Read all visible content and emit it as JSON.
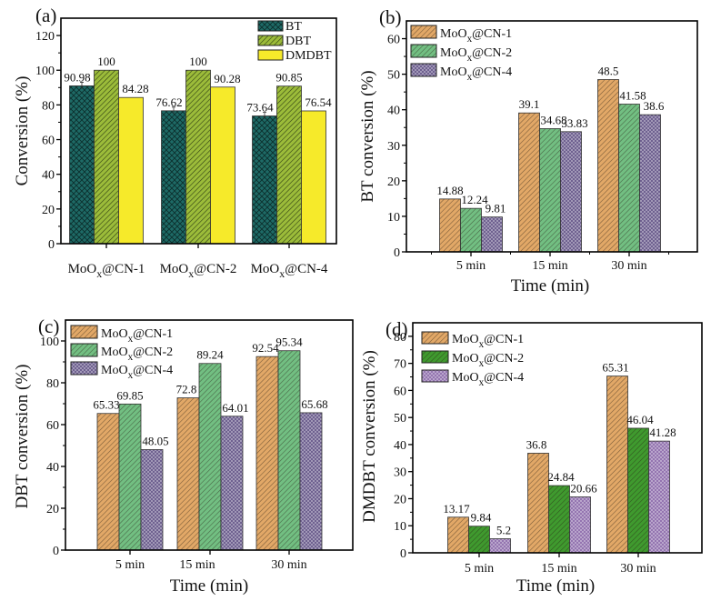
{
  "figure": {
    "panels_count": 4
  },
  "chart_data": [
    {
      "panel": "(a)",
      "type": "bar",
      "title": "",
      "xlabel": "",
      "ylabel": "Conversion (%)",
      "ylim": [
        0,
        130
      ],
      "yticks": [
        0,
        20,
        40,
        60,
        80,
        100,
        120
      ],
      "categories": [
        "MoOx@CN-1",
        "MoOx@CN-2",
        "MoOx@CN-4"
      ],
      "category_parts": [
        {
          "base": "MoO",
          "sub": "x",
          "rest": "@CN-1"
        },
        {
          "base": "MoO",
          "sub": "x",
          "rest": "@CN-2"
        },
        {
          "base": "MoO",
          "sub": "x",
          "rest": "@CN-4"
        }
      ],
      "series": [
        {
          "name": "BT",
          "values": [
            90.98,
            76.62,
            73.64
          ],
          "labels": [
            "90.98",
            "76.62",
            "73.64"
          ],
          "color": "#1e6a66",
          "pattern": "crosshatch",
          "error_bars": true
        },
        {
          "name": "DBT",
          "values": [
            100,
            100,
            90.85
          ],
          "labels": [
            "100",
            "100",
            "90.85"
          ],
          "color": "#9cbc3a",
          "pattern": "stripe-dark"
        },
        {
          "name": "DMDBT",
          "values": [
            84.28,
            90.28,
            76.54
          ],
          "labels": [
            "84.28",
            "90.28",
            "76.54"
          ],
          "color": "#f6ea2a",
          "pattern": "solid"
        }
      ],
      "legend": {
        "placement": "top-right",
        "items": [
          {
            "label": "BT"
          },
          {
            "label": "DBT"
          },
          {
            "label": "DMDBT"
          }
        ]
      },
      "grid": false
    },
    {
      "panel": "(b)",
      "type": "bar",
      "title": "",
      "xlabel": "Time (min)",
      "ylabel": "BT conversion (%)",
      "ylim": [
        0,
        65
      ],
      "yticks": [
        0,
        10,
        20,
        30,
        40,
        50,
        60
      ],
      "categories": [
        "5 min",
        "15 min",
        "30 min"
      ],
      "series": [
        {
          "name": "MoOx@CN-1",
          "values": [
            14.88,
            39.1,
            48.5
          ],
          "labels": [
            "14.88",
            "39.1",
            "48.5"
          ],
          "color": "#e2a867",
          "pattern": "stripe"
        },
        {
          "name": "MoOx@CN-2",
          "values": [
            12.24,
            34.68,
            41.58
          ],
          "labels": [
            "12.24",
            "34.68",
            "41.58"
          ],
          "color": "#72bf82",
          "pattern": "stripe"
        },
        {
          "name": "MoOx@CN-4",
          "values": [
            9.81,
            33.83,
            38.6
          ],
          "labels": [
            "9.81",
            "33.83",
            "38.6"
          ],
          "color": "#6f6190",
          "pattern": "checker"
        }
      ],
      "legend": {
        "placement": "top-left",
        "items": [
          {
            "base": "MoO",
            "sub": "x",
            "rest": "@CN-1"
          },
          {
            "base": "MoO",
            "sub": "x",
            "rest": "@CN-2"
          },
          {
            "base": "MoO",
            "sub": "x",
            "rest": "@CN-4"
          }
        ]
      },
      "grid": false
    },
    {
      "panel": "(c)",
      "type": "bar",
      "title": "",
      "xlabel": "Time (min)",
      "ylabel": "DBT conversion (%)",
      "ylim": [
        0,
        110
      ],
      "yticks": [
        0,
        20,
        40,
        60,
        80,
        100
      ],
      "categories": [
        "5 min",
        "15 min",
        "30 min"
      ],
      "series": [
        {
          "name": "MoOx@CN-1",
          "values": [
            65.33,
            72.8,
            92.54
          ],
          "labels": [
            "65.33",
            "72.8",
            "92.54"
          ],
          "color": "#e2a867",
          "pattern": "stripe"
        },
        {
          "name": "MoOx@CN-2",
          "values": [
            69.85,
            89.24,
            95.34
          ],
          "labels": [
            "69.85",
            "89.24",
            "95.34"
          ],
          "color": "#72bf82",
          "pattern": "stripe"
        },
        {
          "name": "MoOx@CN-4",
          "values": [
            48.05,
            64.01,
            65.68
          ],
          "labels": [
            "48.05",
            "64.01",
            "65.68"
          ],
          "color": "#6f6190",
          "pattern": "checker"
        }
      ],
      "legend": {
        "placement": "top-left",
        "items": [
          {
            "base": "MoO",
            "sub": "x",
            "rest": "@CN-1"
          },
          {
            "base": "MoO",
            "sub": "x",
            "rest": "@CN-2"
          },
          {
            "base": "MoO",
            "sub": "x",
            "rest": "@CN-4"
          }
        ]
      },
      "grid": false
    },
    {
      "panel": "(d)",
      "type": "bar",
      "title": "",
      "xlabel": "Time (min)",
      "ylabel": "DMDBT conversion (%)",
      "ylim": [
        0,
        85
      ],
      "yticks": [
        0,
        10,
        20,
        30,
        40,
        50,
        60,
        70,
        80
      ],
      "categories": [
        "5 min",
        "15 min",
        "30 min"
      ],
      "series": [
        {
          "name": "MoOx@CN-1",
          "values": [
            13.17,
            36.8,
            65.31
          ],
          "labels": [
            "13.17",
            "36.8",
            "65.31"
          ],
          "color": "#e2a867",
          "pattern": "stripe"
        },
        {
          "name": "MoOx@CN-2",
          "values": [
            9.84,
            24.84,
            46.04
          ],
          "labels": [
            "9.84",
            "24.84",
            "46.04"
          ],
          "color": "#3f9a2e",
          "pattern": "stripe"
        },
        {
          "name": "MoOx@CN-4",
          "values": [
            5.2,
            20.66,
            41.28
          ],
          "labels": [
            "5.2",
            "20.66",
            "41.28"
          ],
          "color": "#9475b0",
          "pattern": "checker"
        }
      ],
      "legend": {
        "placement": "top-left",
        "items": [
          {
            "base": "MoO",
            "sub": "x",
            "rest": "@CN-1"
          },
          {
            "base": "MoO",
            "sub": "x",
            "rest": "@CN-2"
          },
          {
            "base": "MoO",
            "sub": "x",
            "rest": "@CN-4"
          }
        ]
      },
      "grid": false
    }
  ]
}
